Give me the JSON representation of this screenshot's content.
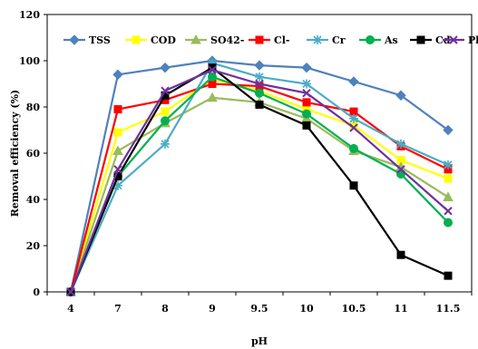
{
  "chart_data": {
    "type": "line",
    "title": "",
    "xlabel": "pH",
    "ylabel": "Removal efficiency (%)",
    "categories": [
      "4",
      "7",
      "8",
      "9",
      "9.5",
      "10",
      "10.5",
      "11",
      "11.5"
    ],
    "ylim": [
      0,
      120
    ],
    "yticks": [
      0,
      20,
      40,
      60,
      80,
      100,
      120
    ],
    "grid": false,
    "legend_position": "top",
    "series": [
      {
        "name": "TSS",
        "color": "#4F81BD",
        "marker": "diamond",
        "values": [
          0,
          94,
          97,
          100,
          98,
          97,
          91,
          85,
          70
        ]
      },
      {
        "name": "COD",
        "color": "#FFFF00",
        "marker": "square",
        "values": [
          0,
          69,
          78,
          92,
          87,
          79,
          72,
          57,
          49
        ]
      },
      {
        "name": "SO42-",
        "color": "#9BBB59",
        "marker": "triangle",
        "values": [
          0,
          61,
          73,
          84,
          82,
          75,
          61,
          54,
          41
        ]
      },
      {
        "name": "Cl-",
        "color": "#FF0000",
        "marker": "square",
        "values": [
          0,
          79,
          83,
          90,
          89,
          82,
          78,
          63,
          53
        ]
      },
      {
        "name": "Cr",
        "color": "#4BACC6",
        "marker": "star",
        "values": [
          0,
          46,
          64,
          99,
          93,
          90,
          75,
          64,
          55
        ]
      },
      {
        "name": "As",
        "color": "#00B050",
        "marker": "circle",
        "values": [
          0,
          50,
          74,
          93,
          86,
          77,
          62,
          51,
          30
        ]
      },
      {
        "name": "Cd",
        "color": "#000000",
        "marker": "square",
        "values": [
          0,
          50,
          85,
          97,
          81,
          72,
          46,
          16,
          7
        ]
      },
      {
        "name": "Pb",
        "color": "#7030A0",
        "marker": "x",
        "values": [
          0,
          53,
          87,
          96,
          90,
          86,
          71,
          53,
          35
        ]
      }
    ]
  }
}
